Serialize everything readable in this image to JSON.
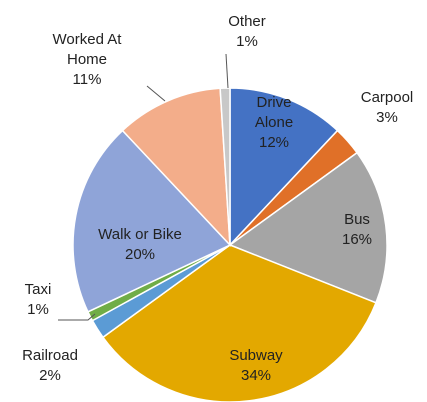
{
  "chart_data": {
    "type": "pie",
    "categories": [
      "Drive Alone",
      "Carpool",
      "Bus",
      "Subway",
      "Railroad",
      "Taxi",
      "Walk or Bike",
      "Worked At Home",
      "Other"
    ],
    "values": [
      12,
      3,
      16,
      34,
      2,
      1,
      20,
      11,
      1
    ],
    "value_labels": [
      "12%",
      "3%",
      "16%",
      "34%",
      "2%",
      "1%",
      "20%",
      "11%",
      "1%"
    ],
    "colors": [
      "#4472c4",
      "#e07028",
      "#a5a5a5",
      "#e3a800",
      "#5b9bd5",
      "#70ad47",
      "#8fa4d8",
      "#f3ad8a",
      "#c8c8c8"
    ]
  }
}
